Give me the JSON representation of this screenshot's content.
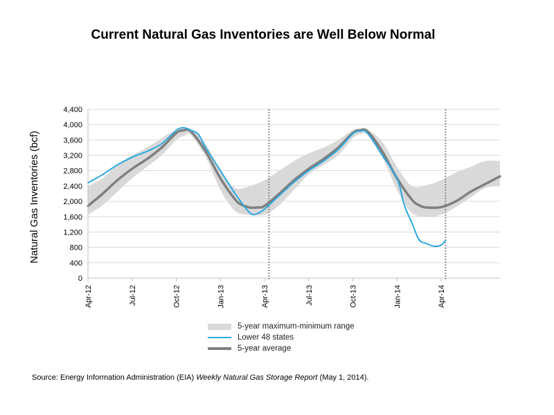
{
  "chart_data": {
    "type": "line",
    "title": "Current Natural Gas Inventories are Well Below Normal",
    "ylabel": "Natural Gas Inventories  (bcf)",
    "xlabel": "",
    "ylim": [
      0,
      4400
    ],
    "yticks": [
      0,
      400,
      800,
      1200,
      1600,
      2000,
      2400,
      2800,
      3200,
      3600,
      4000,
      4400
    ],
    "ytick_labels": [
      "0",
      "400",
      "800",
      "1,200",
      "1,600",
      "2,000",
      "2,400",
      "2,800",
      "3,200",
      "3,600",
      "4,000",
      "4,400"
    ],
    "x_tick_labels": [
      "Apr-12",
      "Jul-12",
      "Oct-12",
      "Jan-13",
      "Apr-13",
      "Jul-13",
      "Oct-13",
      "Jan-14",
      "Apr-14"
    ],
    "x_tick_positions_month": [
      0,
      3,
      6,
      9,
      12,
      15,
      18,
      21,
      24
    ],
    "x_range_month": [
      0,
      28
    ],
    "dashed_vlines_month": [
      12.3,
      24.3
    ],
    "grid": true,
    "legend_position": "bottom",
    "series": [
      {
        "name": "5-year maximum-minimum  range",
        "kind": "band",
        "color": "#d9d9d9",
        "x_month": [
          0,
          1,
          2,
          3,
          4,
          5,
          6,
          6.5,
          7,
          8,
          9,
          10,
          11,
          12,
          13,
          14,
          15,
          16,
          17,
          18,
          18.5,
          19,
          20,
          21,
          22,
          23,
          24,
          25,
          26,
          27,
          28
        ],
        "upper": [
          2400,
          2600,
          2950,
          3200,
          3400,
          3650,
          3860,
          3900,
          3880,
          3500,
          2800,
          2350,
          2400,
          2550,
          2800,
          3050,
          3250,
          3400,
          3600,
          3860,
          3900,
          3870,
          3550,
          2900,
          2400,
          2420,
          2550,
          2750,
          2900,
          3050,
          3050
        ],
        "lower": [
          1650,
          1900,
          2250,
          2600,
          2900,
          3200,
          3600,
          3700,
          3720,
          3150,
          2300,
          1750,
          1650,
          1650,
          1900,
          2300,
          2700,
          2950,
          3200,
          3650,
          3750,
          3720,
          3150,
          2300,
          1700,
          1600,
          1650,
          1850,
          2100,
          2350,
          2400
        ]
      },
      {
        "name": "Lower 48 states",
        "kind": "line",
        "color": "#29a8e0",
        "x_month": [
          0,
          1,
          2,
          3,
          4,
          5,
          6,
          6.5,
          7,
          7.5,
          8,
          9,
          10,
          11,
          11.5,
          12,
          13,
          14,
          15,
          16,
          17,
          18,
          18.5,
          19,
          20,
          21,
          21.5,
          22,
          22.5,
          23,
          23.5,
          24,
          24.3
        ],
        "values": [
          2480,
          2700,
          2950,
          3150,
          3300,
          3500,
          3850,
          3920,
          3850,
          3750,
          3400,
          2800,
          2200,
          1700,
          1680,
          1800,
          2150,
          2500,
          2800,
          3050,
          3350,
          3760,
          3830,
          3780,
          3200,
          2600,
          1900,
          1450,
          1000,
          900,
          830,
          860,
          980
        ]
      },
      {
        "name": "5-year average",
        "kind": "line",
        "color": "#7f7f7f",
        "x_month": [
          0,
          1,
          2,
          3,
          4,
          5,
          6,
          6.5,
          7,
          8,
          9,
          10,
          10.5,
          11,
          11.5,
          12,
          13,
          14,
          15,
          16,
          17,
          18,
          18.5,
          19,
          20,
          21,
          22,
          22.5,
          23,
          24,
          25,
          26,
          27,
          28
        ],
        "values": [
          1880,
          2200,
          2550,
          2850,
          3100,
          3400,
          3780,
          3850,
          3820,
          3300,
          2600,
          2050,
          1900,
          1840,
          1840,
          1880,
          2200,
          2550,
          2850,
          3100,
          3400,
          3780,
          3850,
          3820,
          3300,
          2600,
          2050,
          1900,
          1840,
          1850,
          2000,
          2250,
          2450,
          2650
        ]
      }
    ]
  },
  "source": {
    "prefix": "Source:  Energy Information Administration (EIA) ",
    "report": "Weekly Natural Gas Storage Report",
    "suffix": " (May 1, 2014)."
  }
}
